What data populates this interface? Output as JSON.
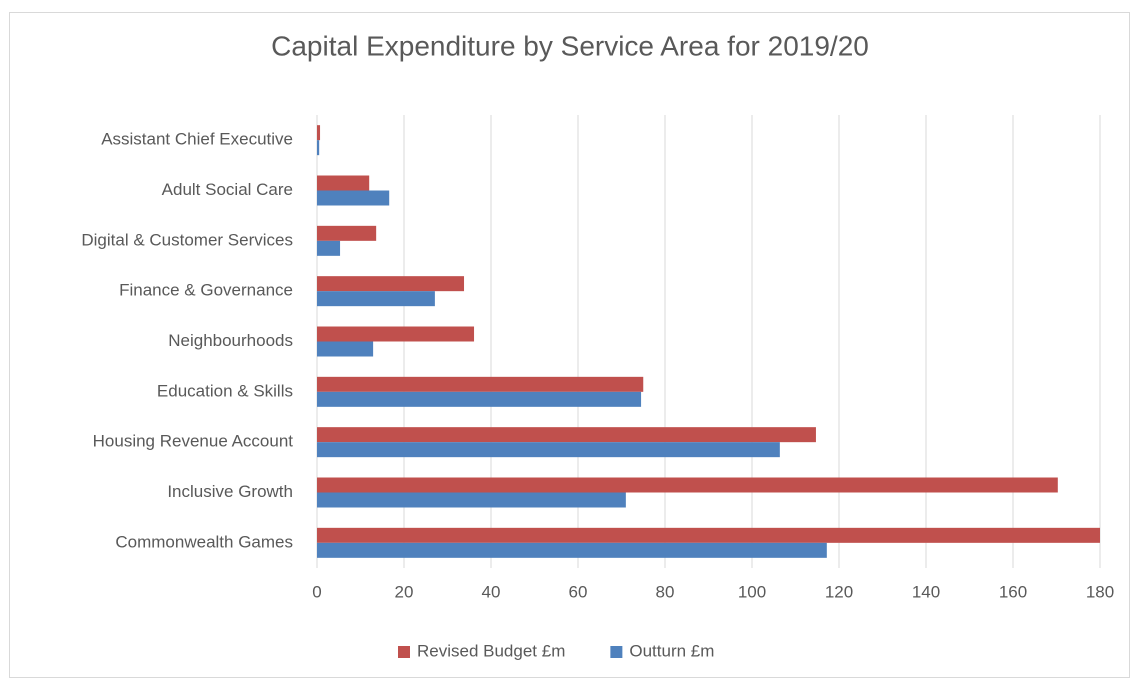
{
  "chart_data": {
    "type": "hbar",
    "title": "Capital Expenditure by Service Area for 2019/20",
    "categories": [
      "Assistant Chief Executive",
      "Adult Social Care",
      "Digital & Customer Services",
      "Finance & Governance",
      "Neighbourhoods",
      "Education & Skills",
      "Housing Revenue Account",
      "Inclusive Growth",
      "Commonwealth Games"
    ],
    "series": [
      {
        "name": "Revised Budget £m",
        "color": "#c0504d",
        "values": [
          0.7,
          12,
          13.6,
          33.8,
          36.1,
          75,
          114.7,
          170.3,
          180
        ]
      },
      {
        "name": "Outturn £m",
        "color": "#4f81bd",
        "values": [
          0.5,
          16.6,
          5.3,
          27.1,
          12.9,
          74.5,
          106.4,
          71,
          117.2
        ]
      }
    ],
    "xlim": [
      0,
      180
    ],
    "xticks": [
      0,
      20,
      40,
      60,
      80,
      100,
      120,
      140,
      160,
      180
    ],
    "grid": true,
    "legend": "bottom"
  }
}
